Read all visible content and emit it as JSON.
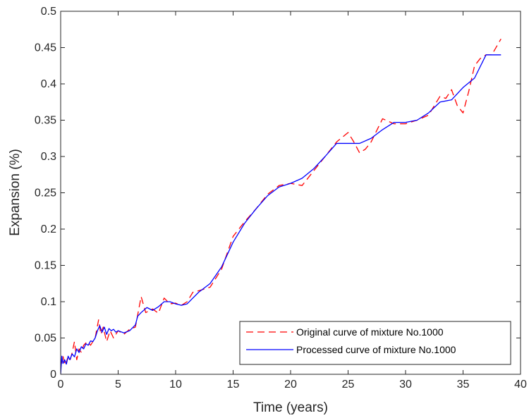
{
  "chart_data": {
    "type": "line",
    "xlabel": "Time (years)",
    "ylabel": "Expansion (%)",
    "xlim": [
      0,
      40
    ],
    "ylim": [
      0,
      0.5
    ],
    "xticks": [
      0,
      5,
      10,
      15,
      20,
      25,
      30,
      35,
      40
    ],
    "xtick_labels": [
      "0",
      "5",
      "10",
      "15",
      "20",
      "25",
      "30",
      "35",
      "40"
    ],
    "yticks": [
      0,
      0.05,
      0.1,
      0.15,
      0.2,
      0.25,
      0.3,
      0.35,
      0.4,
      0.45,
      0.5
    ],
    "ytick_labels": [
      "0",
      "0.05",
      "0.1",
      "0.15",
      "0.2",
      "0.25",
      "0.3",
      "0.35",
      "0.4",
      "0.45",
      "0.5"
    ],
    "grid": false,
    "legend_position": "bottom-right",
    "series": [
      {
        "name": "Original curve of mixture No.1000",
        "color": "#ff0000",
        "style": "dashed",
        "x": [
          0,
          0.2,
          0.4,
          0.6,
          0.8,
          1.0,
          1.2,
          1.4,
          1.6,
          1.8,
          2.0,
          2.3,
          2.6,
          3.0,
          3.3,
          3.5,
          3.7,
          4.0,
          4.3,
          4.6,
          5.0,
          5.5,
          6.0,
          6.5,
          7.0,
          7.4,
          8.0,
          8.5,
          9.0,
          9.5,
          10.0,
          10.5,
          11.0,
          11.5,
          12.0,
          13.0,
          14.0,
          15.0,
          16.0,
          17.0,
          18.0,
          19.0,
          20.0,
          21.0,
          22.0,
          23.0,
          24.0,
          25.0,
          25.5,
          26.0,
          26.5,
          27.0,
          28.0,
          29.0,
          30.0,
          31.0,
          32.0,
          33.0,
          33.5,
          34.0,
          34.5,
          35.0,
          35.5,
          36.0,
          36.5,
          37.0,
          37.5,
          38.3
        ],
        "y": [
          0.01,
          0.025,
          0.012,
          0.022,
          0.018,
          0.03,
          0.045,
          0.02,
          0.035,
          0.03,
          0.04,
          0.045,
          0.04,
          0.05,
          0.075,
          0.055,
          0.065,
          0.045,
          0.06,
          0.05,
          0.06,
          0.055,
          0.062,
          0.065,
          0.107,
          0.085,
          0.09,
          0.084,
          0.105,
          0.097,
          0.098,
          0.095,
          0.1,
          0.113,
          0.115,
          0.12,
          0.145,
          0.19,
          0.21,
          0.228,
          0.248,
          0.26,
          0.263,
          0.26,
          0.28,
          0.3,
          0.32,
          0.333,
          0.32,
          0.305,
          0.31,
          0.32,
          0.352,
          0.345,
          0.345,
          0.35,
          0.357,
          0.383,
          0.38,
          0.392,
          0.37,
          0.36,
          0.39,
          0.425,
          0.435,
          0.44,
          0.44,
          0.462
        ]
      },
      {
        "name": "Processed curve of mixture No.1000",
        "color": "#0000ff",
        "style": "solid",
        "x": [
          0,
          0.1,
          0.2,
          0.35,
          0.5,
          0.65,
          0.8,
          1.0,
          1.2,
          1.4,
          1.6,
          1.8,
          2.0,
          2.2,
          2.4,
          2.6,
          2.8,
          3.0,
          3.2,
          3.4,
          3.6,
          3.8,
          4.0,
          4.2,
          4.4,
          4.6,
          4.8,
          5.0,
          5.5,
          6.0,
          6.5,
          6.7,
          7.0,
          7.5,
          8.0,
          8.5,
          9.0,
          9.5,
          10.0,
          10.5,
          11.0,
          11.5,
          12.0,
          13.0,
          14.0,
          15.0,
          16.0,
          17.0,
          18.0,
          19.0,
          20.0,
          21.0,
          22.0,
          23.0,
          24.0,
          25.0,
          26.0,
          27.0,
          28.0,
          29.0,
          30.0,
          31.0,
          32.0,
          33.0,
          34.0,
          35.0,
          36.0,
          37.0,
          37.5,
          38.3
        ],
        "y": [
          0.0,
          0.025,
          0.015,
          0.02,
          0.014,
          0.025,
          0.02,
          0.028,
          0.024,
          0.035,
          0.03,
          0.038,
          0.035,
          0.042,
          0.04,
          0.046,
          0.045,
          0.05,
          0.06,
          0.067,
          0.058,
          0.065,
          0.055,
          0.063,
          0.06,
          0.062,
          0.058,
          0.06,
          0.057,
          0.06,
          0.068,
          0.08,
          0.085,
          0.092,
          0.088,
          0.093,
          0.1,
          0.1,
          0.097,
          0.095,
          0.097,
          0.105,
          0.113,
          0.125,
          0.148,
          0.182,
          0.208,
          0.228,
          0.246,
          0.258,
          0.263,
          0.27,
          0.283,
          0.3,
          0.318,
          0.318,
          0.318,
          0.325,
          0.337,
          0.347,
          0.347,
          0.35,
          0.36,
          0.375,
          0.378,
          0.395,
          0.408,
          0.44,
          0.44,
          0.44
        ]
      }
    ]
  }
}
